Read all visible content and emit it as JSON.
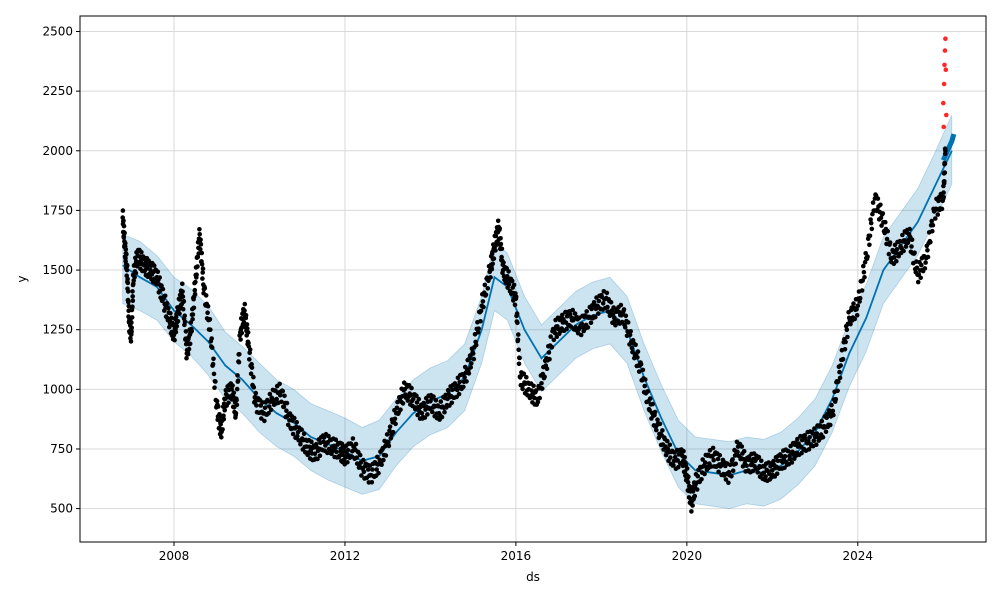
{
  "chart_data": {
    "type": "line",
    "title": "",
    "xlabel": "ds",
    "ylabel": "y",
    "xlim": [
      2005.8,
      2027.0
    ],
    "ylim": [
      360,
      2565
    ],
    "grid": true,
    "x_ticks": [
      2008,
      2012,
      2016,
      2020,
      2024
    ],
    "x_tick_labels": [
      "2008",
      "2012",
      "2016",
      "2020",
      "2024"
    ],
    "y_ticks": [
      500,
      750,
      1000,
      1250,
      1500,
      1750,
      2000,
      2250,
      2500
    ],
    "y_tick_labels": [
      "500",
      "750",
      "1000",
      "1250",
      "1500",
      "1750",
      "2000",
      "2250",
      "2500"
    ],
    "colors": {
      "forecast": "#0072B2",
      "interval_fill": "#0072B2",
      "observed": "#000000",
      "outliers": "#ff0000"
    },
    "series": [
      {
        "kind": "observed",
        "points": [
          [
            2006.8,
            1720
          ],
          [
            2006.85,
            1600
          ],
          [
            2006.9,
            1500
          ],
          [
            2006.95,
            1280
          ],
          [
            2007.0,
            1230
          ],
          [
            2007.05,
            1480
          ],
          [
            2007.15,
            1560
          ],
          [
            2007.3,
            1520
          ],
          [
            2007.45,
            1500
          ],
          [
            2007.6,
            1470
          ],
          [
            2007.75,
            1380
          ],
          [
            2007.9,
            1290
          ],
          [
            2008.0,
            1230
          ],
          [
            2008.1,
            1330
          ],
          [
            2008.2,
            1410
          ],
          [
            2008.3,
            1150
          ],
          [
            2008.4,
            1250
          ],
          [
            2008.5,
            1450
          ],
          [
            2008.6,
            1650
          ],
          [
            2008.7,
            1420
          ],
          [
            2008.85,
            1250
          ],
          [
            2009.0,
            930
          ],
          [
            2009.1,
            820
          ],
          [
            2009.2,
            960
          ],
          [
            2009.35,
            1000
          ],
          [
            2009.45,
            900
          ],
          [
            2009.55,
            1240
          ],
          [
            2009.65,
            1330
          ],
          [
            2009.75,
            1180
          ],
          [
            2009.9,
            950
          ],
          [
            2010.1,
            900
          ],
          [
            2010.3,
            960
          ],
          [
            2010.5,
            990
          ],
          [
            2010.7,
            870
          ],
          [
            2010.9,
            820
          ],
          [
            2011.1,
            760
          ],
          [
            2011.3,
            730
          ],
          [
            2011.5,
            780
          ],
          [
            2011.7,
            760
          ],
          [
            2011.9,
            740
          ],
          [
            2012.0,
            720
          ],
          [
            2012.2,
            760
          ],
          [
            2012.4,
            670
          ],
          [
            2012.6,
            640
          ],
          [
            2012.8,
            690
          ],
          [
            2013.0,
            780
          ],
          [
            2013.2,
            900
          ],
          [
            2013.4,
            1000
          ],
          [
            2013.6,
            960
          ],
          [
            2013.8,
            900
          ],
          [
            2014.0,
            950
          ],
          [
            2014.2,
            900
          ],
          [
            2014.4,
            960
          ],
          [
            2014.6,
            1000
          ],
          [
            2014.8,
            1050
          ],
          [
            2015.0,
            1150
          ],
          [
            2015.2,
            1350
          ],
          [
            2015.4,
            1500
          ],
          [
            2015.5,
            1600
          ],
          [
            2015.6,
            1680
          ],
          [
            2015.7,
            1500
          ],
          [
            2015.85,
            1450
          ],
          [
            2016.0,
            1380
          ],
          [
            2016.1,
            1050
          ],
          [
            2016.3,
            1000
          ],
          [
            2016.5,
            960
          ],
          [
            2016.7,
            1100
          ],
          [
            2016.9,
            1250
          ],
          [
            2017.1,
            1280
          ],
          [
            2017.3,
            1300
          ],
          [
            2017.5,
            1260
          ],
          [
            2017.7,
            1300
          ],
          [
            2017.9,
            1350
          ],
          [
            2018.1,
            1380
          ],
          [
            2018.3,
            1300
          ],
          [
            2018.5,
            1320
          ],
          [
            2018.7,
            1200
          ],
          [
            2018.9,
            1100
          ],
          [
            2019.1,
            950
          ],
          [
            2019.3,
            850
          ],
          [
            2019.5,
            760
          ],
          [
            2019.7,
            700
          ],
          [
            2019.9,
            720
          ],
          [
            2020.0,
            640
          ],
          [
            2020.1,
            520
          ],
          [
            2020.2,
            600
          ],
          [
            2020.4,
            680
          ],
          [
            2020.6,
            720
          ],
          [
            2020.8,
            680
          ],
          [
            2021.0,
            640
          ],
          [
            2021.2,
            760
          ],
          [
            2021.4,
            680
          ],
          [
            2021.6,
            700
          ],
          [
            2021.8,
            650
          ],
          [
            2022.0,
            660
          ],
          [
            2022.2,
            700
          ],
          [
            2022.4,
            720
          ],
          [
            2022.6,
            760
          ],
          [
            2022.8,
            780
          ],
          [
            2023.0,
            800
          ],
          [
            2023.2,
            840
          ],
          [
            2023.4,
            900
          ],
          [
            2023.6,
            1100
          ],
          [
            2023.8,
            1300
          ],
          [
            2024.0,
            1350
          ],
          [
            2024.2,
            1550
          ],
          [
            2024.4,
            1800
          ],
          [
            2024.6,
            1700
          ],
          [
            2024.8,
            1550
          ],
          [
            2025.0,
            1600
          ],
          [
            2025.2,
            1650
          ],
          [
            2025.4,
            1480
          ],
          [
            2025.6,
            1550
          ],
          [
            2025.8,
            1750
          ],
          [
            2026.0,
            1800
          ],
          [
            2026.05,
            2000
          ]
        ]
      },
      {
        "kind": "forecast",
        "points": [
          [
            2006.8,
            1520
          ],
          [
            2007.2,
            1470
          ],
          [
            2007.6,
            1430
          ],
          [
            2008.0,
            1330
          ],
          [
            2008.4,
            1270
          ],
          [
            2008.8,
            1200
          ],
          [
            2009.2,
            1100
          ],
          [
            2009.6,
            1040
          ],
          [
            2010.0,
            960
          ],
          [
            2010.4,
            900
          ],
          [
            2010.8,
            860
          ],
          [
            2011.2,
            800
          ],
          [
            2011.6,
            770
          ],
          [
            2012.0,
            740
          ],
          [
            2012.4,
            700
          ],
          [
            2012.8,
            720
          ],
          [
            2013.2,
            820
          ],
          [
            2013.6,
            900
          ],
          [
            2014.0,
            950
          ],
          [
            2014.4,
            980
          ],
          [
            2014.8,
            1050
          ],
          [
            2015.2,
            1250
          ],
          [
            2015.5,
            1470
          ],
          [
            2015.8,
            1430
          ],
          [
            2016.2,
            1250
          ],
          [
            2016.6,
            1130
          ],
          [
            2017.0,
            1200
          ],
          [
            2017.4,
            1270
          ],
          [
            2017.8,
            1310
          ],
          [
            2018.2,
            1330
          ],
          [
            2018.6,
            1250
          ],
          [
            2019.0,
            1050
          ],
          [
            2019.4,
            880
          ],
          [
            2019.8,
            730
          ],
          [
            2020.2,
            660
          ],
          [
            2020.6,
            650
          ],
          [
            2021.0,
            640
          ],
          [
            2021.4,
            660
          ],
          [
            2021.8,
            650
          ],
          [
            2022.2,
            680
          ],
          [
            2022.6,
            740
          ],
          [
            2023.0,
            820
          ],
          [
            2023.4,
            960
          ],
          [
            2023.8,
            1150
          ],
          [
            2024.2,
            1300
          ],
          [
            2024.6,
            1500
          ],
          [
            2025.0,
            1600
          ],
          [
            2025.4,
            1700
          ],
          [
            2025.8,
            1850
          ],
          [
            2026.2,
            2000
          ]
        ]
      },
      {
        "kind": "forecast_extension",
        "points": [
          [
            2026.0,
            1960
          ],
          [
            2026.1,
            2000
          ],
          [
            2026.2,
            2040
          ],
          [
            2026.25,
            2070
          ]
        ]
      },
      {
        "kind": "interval",
        "points": [
          [
            2006.8,
            1650,
            1360
          ],
          [
            2007.2,
            1620,
            1330
          ],
          [
            2007.6,
            1560,
            1290
          ],
          [
            2008.0,
            1470,
            1200
          ],
          [
            2008.4,
            1420,
            1140
          ],
          [
            2008.8,
            1350,
            1060
          ],
          [
            2009.2,
            1240,
            960
          ],
          [
            2009.6,
            1180,
            900
          ],
          [
            2010.0,
            1110,
            820
          ],
          [
            2010.4,
            1040,
            760
          ],
          [
            2010.8,
            1000,
            720
          ],
          [
            2011.2,
            940,
            660
          ],
          [
            2011.6,
            910,
            620
          ],
          [
            2012.0,
            880,
            590
          ],
          [
            2012.4,
            840,
            560
          ],
          [
            2012.8,
            870,
            580
          ],
          [
            2013.2,
            960,
            680
          ],
          [
            2013.6,
            1040,
            760
          ],
          [
            2014.0,
            1090,
            810
          ],
          [
            2014.4,
            1120,
            840
          ],
          [
            2014.8,
            1190,
            910
          ],
          [
            2015.2,
            1390,
            1110
          ],
          [
            2015.5,
            1620,
            1330
          ],
          [
            2015.8,
            1570,
            1290
          ],
          [
            2016.2,
            1390,
            1110
          ],
          [
            2016.6,
            1270,
            990
          ],
          [
            2017.0,
            1340,
            1060
          ],
          [
            2017.4,
            1410,
            1130
          ],
          [
            2017.8,
            1450,
            1170
          ],
          [
            2018.2,
            1470,
            1190
          ],
          [
            2018.6,
            1390,
            1110
          ],
          [
            2019.0,
            1190,
            910
          ],
          [
            2019.4,
            1020,
            740
          ],
          [
            2019.8,
            870,
            590
          ],
          [
            2020.2,
            800,
            520
          ],
          [
            2020.6,
            790,
            510
          ],
          [
            2021.0,
            780,
            500
          ],
          [
            2021.4,
            800,
            520
          ],
          [
            2021.8,
            790,
            510
          ],
          [
            2022.2,
            820,
            540
          ],
          [
            2022.6,
            880,
            600
          ],
          [
            2023.0,
            960,
            680
          ],
          [
            2023.4,
            1100,
            820
          ],
          [
            2023.8,
            1290,
            1010
          ],
          [
            2024.2,
            1440,
            1160
          ],
          [
            2024.6,
            1640,
            1360
          ],
          [
            2025.0,
            1740,
            1460
          ],
          [
            2025.4,
            1840,
            1560
          ],
          [
            2025.8,
            1990,
            1710
          ],
          [
            2026.2,
            2150,
            1860
          ]
        ]
      },
      {
        "kind": "outliers",
        "points": [
          [
            2026.0,
            2200
          ],
          [
            2026.02,
            2280
          ],
          [
            2026.03,
            2360
          ],
          [
            2026.04,
            2420
          ],
          [
            2026.05,
            2470
          ],
          [
            2026.06,
            2340
          ],
          [
            2026.07,
            2150
          ],
          [
            2026.01,
            2100
          ]
        ]
      }
    ]
  }
}
